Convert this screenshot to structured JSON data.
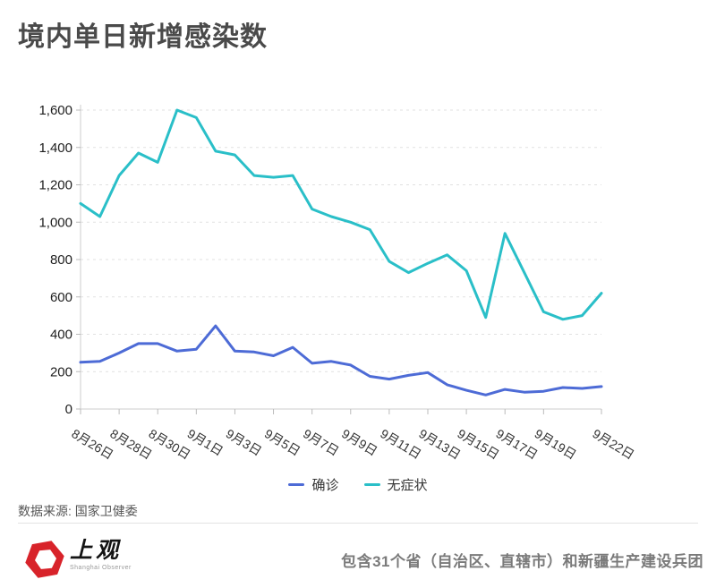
{
  "title": "境内单日新增感染数",
  "chart_data": {
    "type": "line",
    "title": "境内单日新增感染数",
    "x": [
      "8月26日",
      "8月27日",
      "8月28日",
      "8月29日",
      "8月30日",
      "8月31日",
      "9月1日",
      "9月2日",
      "9月3日",
      "9月4日",
      "9月5日",
      "9月6日",
      "9月7日",
      "9月8日",
      "9月9日",
      "9月10日",
      "9月11日",
      "9月12日",
      "9月13日",
      "9月14日",
      "9月15日",
      "9月16日",
      "9月17日",
      "9月18日",
      "9月19日",
      "9月20日",
      "9月21日",
      "9月22日"
    ],
    "x_tick_labels": [
      "8月26日",
      "8月28日",
      "8月30日",
      "9月1日",
      "9月3日",
      "9月5日",
      "9月7日",
      "9月9日",
      "9月11日",
      "9月13日",
      "9月15日",
      "9月17日",
      "9月19日",
      "9月22日"
    ],
    "series": [
      {
        "name": "确诊",
        "color": "#4d6bd6",
        "values": [
          250,
          255,
          300,
          350,
          350,
          310,
          320,
          445,
          310,
          305,
          285,
          330,
          245,
          255,
          235,
          175,
          160,
          180,
          195,
          130,
          100,
          75,
          105,
          90,
          95,
          115,
          110,
          120
        ]
      },
      {
        "name": "无症状",
        "color": "#2abfc8",
        "values": [
          1100,
          1030,
          1250,
          1370,
          1320,
          1600,
          1560,
          1380,
          1360,
          1250,
          1240,
          1250,
          1070,
          1030,
          1000,
          960,
          790,
          730,
          780,
          825,
          740,
          490,
          940,
          730,
          520,
          480,
          500,
          620
        ]
      }
    ],
    "xlabel": "",
    "ylabel": "",
    "ylim": [
      0,
      1600
    ],
    "ytick_step": 200,
    "grid": "horizontal-dashed",
    "legend_position": "bottom"
  },
  "legend": {
    "items": [
      {
        "label": "确诊",
        "color": "#4d6bd6"
      },
      {
        "label": "无症状",
        "color": "#2abfc8"
      }
    ]
  },
  "source": {
    "label": "数据来源: 国家卫健委"
  },
  "footer": {
    "brand": "上观",
    "brand_sub": "Shanghai Observer",
    "note": "包含31个省（自治区、直辖市）和新疆生产建设兵团",
    "logo_color": "#d8232a"
  }
}
